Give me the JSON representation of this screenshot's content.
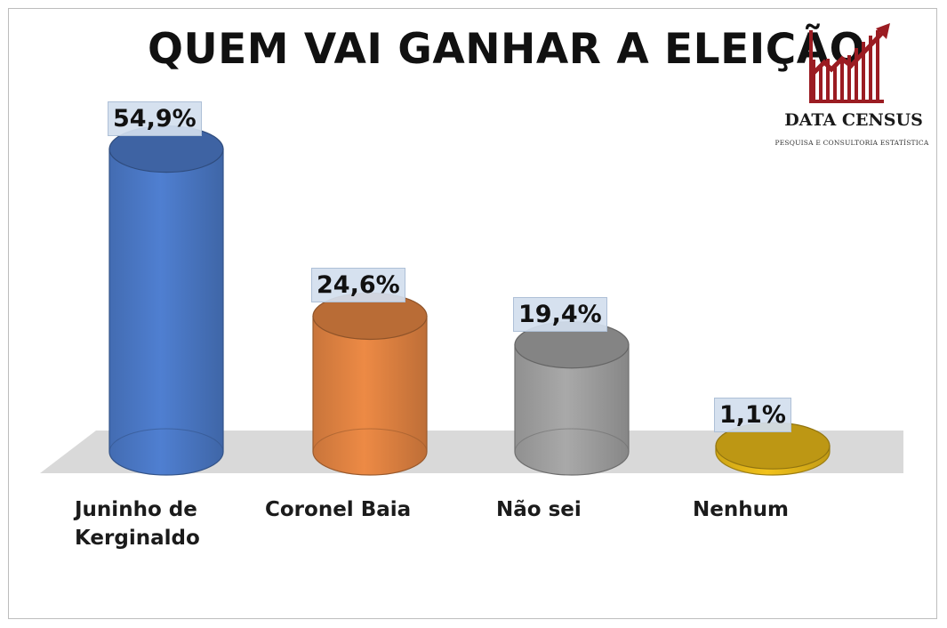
{
  "title": "QUEM VAI GANHAR A ELEIÇÃO",
  "brand": {
    "name": "DATA CENSUS",
    "tagline": "PESQUISA E CONSULTORIA ESTATÍSTICA",
    "color": "#9b1c22"
  },
  "chart_data": {
    "type": "bar",
    "style": "3d-cylinder",
    "title": "QUEM VAI GANHAR A ELEIÇÃO",
    "categories": [
      "Juninho de Kerginaldo",
      "Coronel Baia",
      "Não sei",
      "Nenhum"
    ],
    "category_lines": [
      [
        "Juninho de",
        "Kerginaldo"
      ],
      [
        "Coronel Baia"
      ],
      [
        "Não sei"
      ],
      [
        "Nenhum"
      ]
    ],
    "values": [
      54.9,
      24.6,
      19.4,
      1.1
    ],
    "data_labels": [
      "54,9%",
      "24,6%",
      "19,4%",
      "1,1%"
    ],
    "colors": [
      "#4f7fd1",
      "#ed8a45",
      "#a9a9a9",
      "#f2c21a"
    ],
    "unit": "%",
    "grid": false,
    "legend": "none"
  }
}
